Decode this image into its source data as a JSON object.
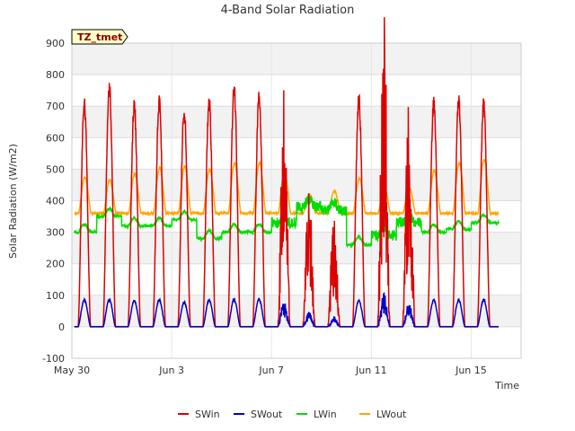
{
  "chart_data": {
    "type": "line",
    "title": "4-Band Solar Radiation",
    "xlabel": "Time",
    "ylabel": "Solar Radiation (W/m2)",
    "ylim": [
      -100,
      900
    ],
    "xlim": [
      0,
      18
    ],
    "yticks": [
      -100,
      0,
      100,
      200,
      300,
      400,
      500,
      600,
      700,
      800,
      900
    ],
    "xticks": [
      {
        "x": 0,
        "label": "May 30"
      },
      {
        "x": 4,
        "label": "Jun 3"
      },
      {
        "x": 8,
        "label": "Jun 7"
      },
      {
        "x": 12,
        "label": "Jun 11"
      },
      {
        "x": 16,
        "label": "Jun 15"
      }
    ],
    "grid": true,
    "site_tag": "TZ_tmet",
    "legend_position": "bottom",
    "x_unit": "days since May 30 (daily diurnal cycle; data covers ~May 30 to Jun 16)",
    "series": [
      {
        "name": "SWin",
        "color": "#dd0000",
        "daily_peaks": [
          735,
          785,
          725,
          740,
          710,
          740,
          780,
          750,
          640,
          380,
          300,
          745,
          860,
          620,
          735,
          740,
          730
        ],
        "description": "shortwave incoming; near 0 at night, daily peaks listed; cloudy/erratic on Jun 8-10 and Jun 12-13"
      },
      {
        "name": "SWout",
        "color": "#0000cc",
        "daily_peaks": [
          88,
          90,
          85,
          88,
          80,
          88,
          90,
          90,
          75,
          45,
          30,
          85,
          105,
          70,
          88,
          88,
          88
        ],
        "description": "shortwave outgoing; near 0 at night"
      },
      {
        "name": "LWin",
        "color": "#00dd00",
        "daily_levels": [
          300,
          350,
          320,
          320,
          340,
          280,
          300,
          300,
          330,
          380,
          370,
          260,
          290,
          330,
          300,
          310,
          330
        ],
        "description": "longwave incoming; 250-390 W/m2 range"
      },
      {
        "name": "LWout",
        "color": "#ffa500",
        "daily_peaks": [
          475,
          465,
          485,
          505,
          510,
          500,
          520,
          520,
          490,
          420,
          430,
          470,
          440,
          440,
          495,
          520,
          530
        ],
        "daily_min": 360,
        "description": "longwave outgoing; 350-530 W/m2 diurnal cycle"
      }
    ]
  }
}
